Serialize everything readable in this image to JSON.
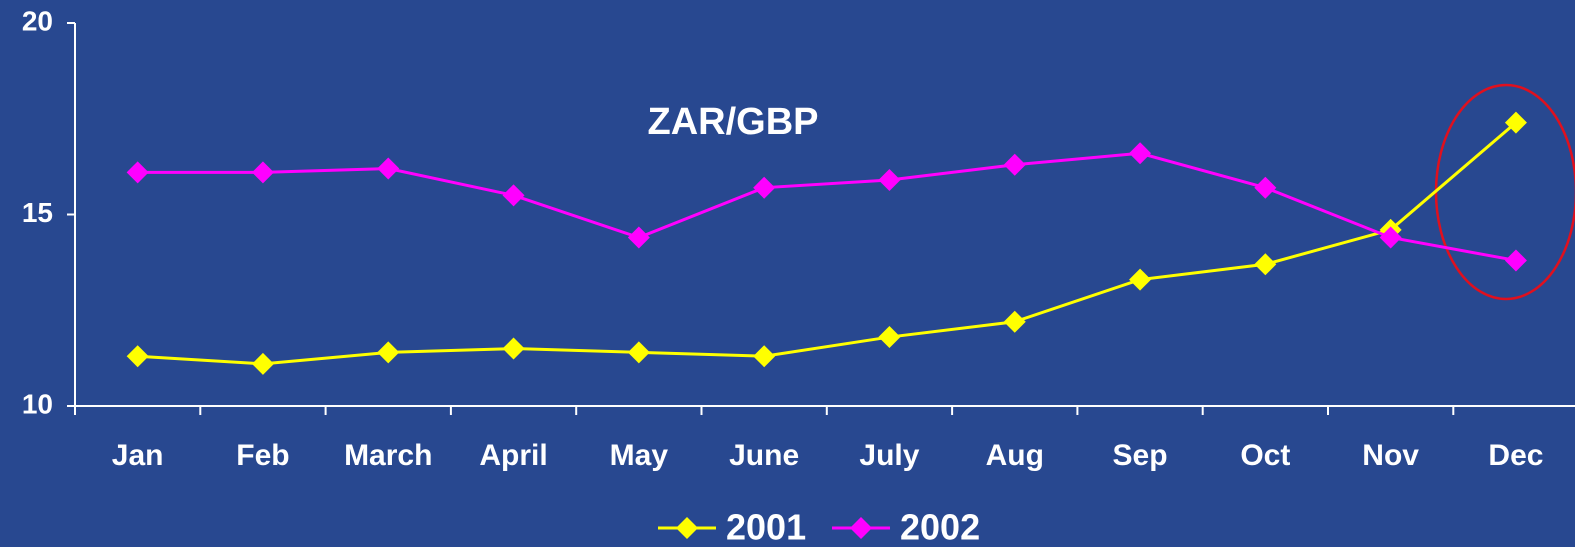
{
  "chart_data": {
    "type": "line",
    "title": "ZAR/GBP",
    "categories": [
      "Jan",
      "Feb",
      "March",
      "April",
      "May",
      "June",
      "July",
      "Aug",
      "Sep",
      "Oct",
      "Nov",
      "Dec"
    ],
    "series": [
      {
        "name": "2001",
        "color": "#ffff00",
        "values": [
          11.3,
          11.1,
          11.4,
          11.5,
          11.4,
          11.3,
          11.8,
          12.2,
          13.3,
          13.7,
          14.6,
          17.4
        ]
      },
      {
        "name": "2002",
        "color": "#ff00ff",
        "values": [
          16.1,
          16.1,
          16.2,
          15.5,
          14.4,
          15.7,
          15.9,
          16.3,
          16.6,
          15.7,
          14.4,
          13.8
        ]
      }
    ],
    "ylim": [
      10,
      20
    ],
    "yticks": [
      10,
      15,
      20
    ],
    "legend": "bottom"
  }
}
